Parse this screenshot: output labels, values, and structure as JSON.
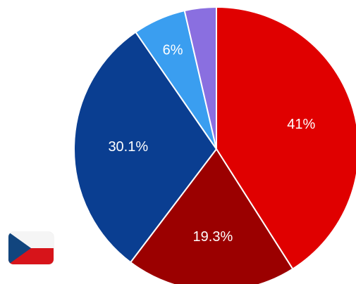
{
  "chart_data": {
    "type": "pie",
    "start_angle_deg": 0,
    "direction": "clockwise",
    "slices": [
      {
        "value": 41.0,
        "label": "41%",
        "color": "#e00000"
      },
      {
        "value": 19.3,
        "label": "19.3%",
        "color": "#9b0000"
      },
      {
        "value": 30.1,
        "label": "30.1%",
        "color": "#0a3e91"
      },
      {
        "value": 6.0,
        "label": "6%",
        "color": "#3a9ef0"
      },
      {
        "value": 3.6,
        "label": "",
        "color": "#8a6fe0"
      }
    ]
  },
  "flag": {
    "icon": "czech-flag-icon",
    "colors": {
      "white": "#f5f5f5",
      "red": "#d7141a",
      "blue": "#11457e"
    }
  }
}
